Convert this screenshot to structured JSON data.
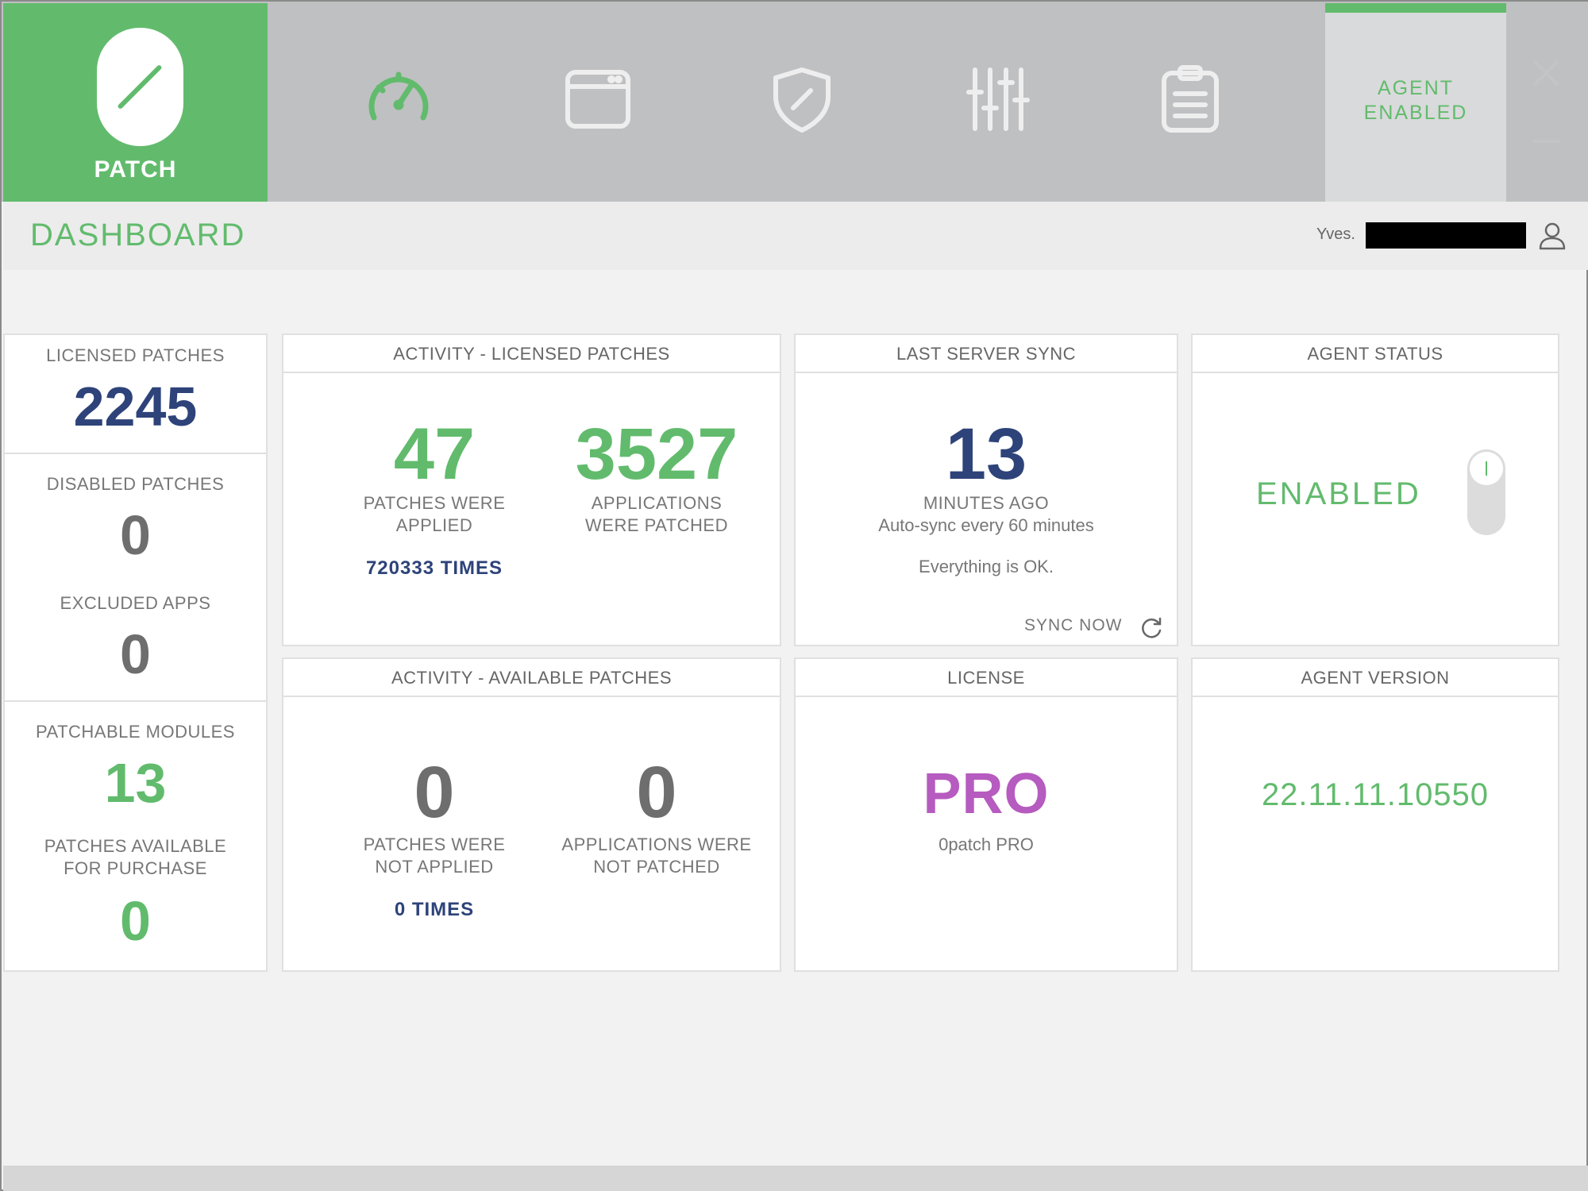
{
  "brand": {
    "label": "PATCH"
  },
  "nav": {
    "items": [
      {
        "icon": "dashboard-gauge-icon",
        "active": true
      },
      {
        "icon": "applications-window-icon"
      },
      {
        "icon": "security-shield-icon"
      },
      {
        "icon": "settings-sliders-icon"
      },
      {
        "icon": "logs-clipboard-icon"
      }
    ]
  },
  "agent_tab": {
    "line1": "AGENT",
    "line2": "ENABLED"
  },
  "header": {
    "title": "DASHBOARD",
    "user_name": "Yves."
  },
  "left": {
    "licensed_label": "LICENSED PATCHES",
    "licensed_value": "2245",
    "disabled_label": "DISABLED PATCHES",
    "disabled_value": "0",
    "excluded_label": "EXCLUDED APPS",
    "excluded_value": "0",
    "modules_label": "PATCHABLE MODULES",
    "modules_value": "13",
    "purchase_label_1": "PATCHES AVAILABLE",
    "purchase_label_2": "FOR PURCHASE",
    "purchase_value": "0"
  },
  "activity_licensed": {
    "title": "ACTIVITY - LICENSED PATCHES",
    "applied_value": "47",
    "applied_label_1": "PATCHES WERE",
    "applied_label_2": "APPLIED",
    "applied_times": "720333 TIMES",
    "patched_value": "3527",
    "patched_label_1": "APPLICATIONS",
    "patched_label_2": "WERE PATCHED"
  },
  "activity_available": {
    "title": "ACTIVITY - AVAILABLE PATCHES",
    "not_applied_value": "0",
    "not_applied_label_1": "PATCHES WERE",
    "not_applied_label_2": "NOT APPLIED",
    "not_applied_times": "0 TIMES",
    "not_patched_value": "0",
    "not_patched_label_1": "APPLICATIONS WERE",
    "not_patched_label_2": "NOT PATCHED"
  },
  "server_sync": {
    "title": "LAST SERVER SYNC",
    "minutes": "13",
    "minutes_label": "MINUTES AGO",
    "auto_sync": "Auto-sync every 60 minutes",
    "status": "Everything is OK.",
    "sync_now": "SYNC NOW"
  },
  "agent_status": {
    "title": "AGENT STATUS",
    "state": "ENABLED",
    "toggle_on": true
  },
  "license": {
    "title": "LICENSE",
    "tier": "PRO",
    "product": "0patch PRO"
  },
  "agent_version": {
    "title": "AGENT VERSION",
    "version": "22.11.11.10550"
  },
  "colors": {
    "accent_green": "#62bb6d",
    "navy": "#2d4379",
    "purple": "#b65bbf",
    "topbar_gray": "#bfc0c2"
  }
}
